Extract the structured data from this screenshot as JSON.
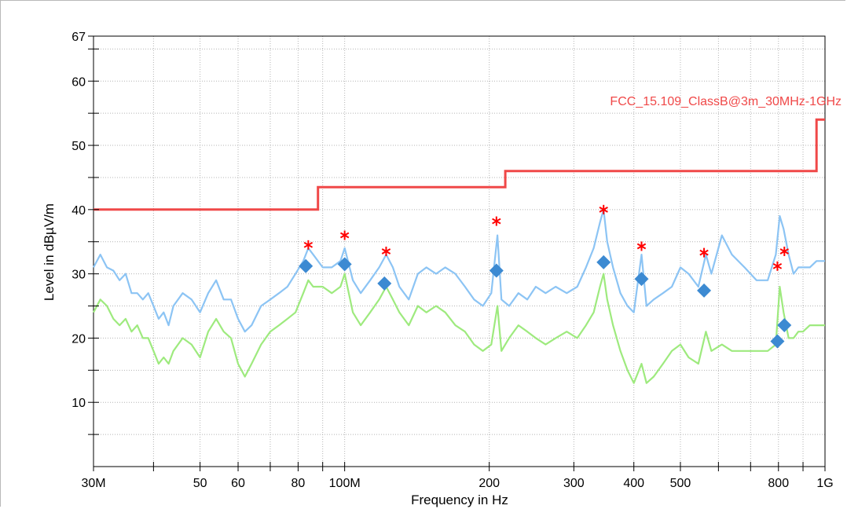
{
  "chart_data": {
    "type": "line",
    "title": "",
    "xlabel": "Frequency in Hz",
    "ylabel": "Level in dBµV/m",
    "xscale": "log",
    "xlim": [
      30000000,
      1000000000
    ],
    "ylim": [
      0,
      67
    ],
    "grid": true,
    "x_tick_labels": [
      {
        "value": 30000000,
        "label": "30M"
      },
      {
        "value": 50000000,
        "label": "50"
      },
      {
        "value": 60000000,
        "label": "60"
      },
      {
        "value": 80000000,
        "label": "80"
      },
      {
        "value": 100000000,
        "label": "100M"
      },
      {
        "value": 200000000,
        "label": "200"
      },
      {
        "value": 300000000,
        "label": "300"
      },
      {
        "value": 400000000,
        "label": "400"
      },
      {
        "value": 500000000,
        "label": "500"
      },
      {
        "value": 800000000,
        "label": "800"
      },
      {
        "value": 1000000000,
        "label": "1G"
      }
    ],
    "y_tick_labels": [
      {
        "value": 10,
        "label": "10"
      },
      {
        "value": 20,
        "label": "20"
      },
      {
        "value": 30,
        "label": "30"
      },
      {
        "value": 40,
        "label": "40"
      },
      {
        "value": 50,
        "label": "50"
      },
      {
        "value": 60,
        "label": "60"
      },
      {
        "value": 67,
        "label": "67"
      }
    ],
    "limit_line": {
      "name": "FCC_15.109_ClassB@3m_30MHz-1GHz",
      "color": "#f04848",
      "points": [
        [
          30000000,
          40.0
        ],
        [
          88000000,
          40.0
        ],
        [
          88000000,
          43.5
        ],
        [
          216000000,
          43.5
        ],
        [
          216000000,
          46.0
        ],
        [
          960000000,
          46.0
        ],
        [
          960000000,
          54.0
        ],
        [
          1000000000,
          54.0
        ]
      ]
    },
    "series": [
      {
        "color": "#8cc4f4",
        "points": [
          [
            30000000,
            31
          ],
          [
            31000000,
            33
          ],
          [
            32000000,
            31
          ],
          [
            33000000,
            30.5
          ],
          [
            34000000,
            29
          ],
          [
            35000000,
            30
          ],
          [
            36000000,
            27
          ],
          [
            37000000,
            27
          ],
          [
            38000000,
            26
          ],
          [
            39000000,
            27
          ],
          [
            40000000,
            25
          ],
          [
            41000000,
            23
          ],
          [
            42000000,
            24
          ],
          [
            43000000,
            22
          ],
          [
            44000000,
            25
          ],
          [
            46000000,
            27
          ],
          [
            48000000,
            26
          ],
          [
            50000000,
            24
          ],
          [
            52000000,
            27
          ],
          [
            54000000,
            29
          ],
          [
            56000000,
            26
          ],
          [
            58000000,
            26
          ],
          [
            60000000,
            23
          ],
          [
            62000000,
            21
          ],
          [
            64000000,
            22
          ],
          [
            67000000,
            25
          ],
          [
            70000000,
            26
          ],
          [
            73000000,
            27
          ],
          [
            76000000,
            28
          ],
          [
            79000000,
            30
          ],
          [
            82000000,
            32
          ],
          [
            84000000,
            34
          ],
          [
            86000000,
            33
          ],
          [
            90000000,
            31
          ],
          [
            94000000,
            31
          ],
          [
            98000000,
            32
          ],
          [
            100000000,
            34
          ],
          [
            104000000,
            29
          ],
          [
            108000000,
            27
          ],
          [
            113000000,
            29
          ],
          [
            118000000,
            31
          ],
          [
            122000000,
            33
          ],
          [
            126000000,
            31
          ],
          [
            130000000,
            28
          ],
          [
            136000000,
            26
          ],
          [
            142000000,
            30
          ],
          [
            148000000,
            31
          ],
          [
            155000000,
            30
          ],
          [
            162000000,
            31
          ],
          [
            170000000,
            30
          ],
          [
            178000000,
            28
          ],
          [
            186000000,
            26
          ],
          [
            194000000,
            25
          ],
          [
            202000000,
            27
          ],
          [
            208000000,
            36
          ],
          [
            212000000,
            26
          ],
          [
            220000000,
            25
          ],
          [
            230000000,
            27
          ],
          [
            240000000,
            26
          ],
          [
            250000000,
            28
          ],
          [
            262000000,
            27
          ],
          [
            275000000,
            28
          ],
          [
            290000000,
            27
          ],
          [
            305000000,
            28
          ],
          [
            318000000,
            31
          ],
          [
            330000000,
            34
          ],
          [
            340000000,
            38
          ],
          [
            346000000,
            40
          ],
          [
            352000000,
            35
          ],
          [
            362000000,
            31
          ],
          [
            375000000,
            27
          ],
          [
            388000000,
            25
          ],
          [
            400000000,
            24
          ],
          [
            415000000,
            33
          ],
          [
            425000000,
            25
          ],
          [
            440000000,
            26
          ],
          [
            460000000,
            27
          ],
          [
            480000000,
            28
          ],
          [
            500000000,
            31
          ],
          [
            520000000,
            30
          ],
          [
            545000000,
            28
          ],
          [
            565000000,
            33
          ],
          [
            580000000,
            30
          ],
          [
            610000000,
            36
          ],
          [
            640000000,
            33
          ],
          [
            680000000,
            31
          ],
          [
            720000000,
            29
          ],
          [
            760000000,
            29
          ],
          [
            790000000,
            33
          ],
          [
            805000000,
            39
          ],
          [
            820000000,
            37
          ],
          [
            840000000,
            33
          ],
          [
            860000000,
            30
          ],
          [
            880000000,
            31
          ],
          [
            900000000,
            31
          ],
          [
            930000000,
            31
          ],
          [
            960000000,
            32
          ],
          [
            1000000000,
            32
          ]
        ]
      },
      {
        "color": "#9eea7e",
        "points": [
          [
            30000000,
            24
          ],
          [
            31000000,
            26
          ],
          [
            32000000,
            25
          ],
          [
            33000000,
            23
          ],
          [
            34000000,
            22
          ],
          [
            35000000,
            23
          ],
          [
            36000000,
            21
          ],
          [
            37000000,
            22
          ],
          [
            38000000,
            20
          ],
          [
            39000000,
            20
          ],
          [
            40000000,
            18
          ],
          [
            41000000,
            16
          ],
          [
            42000000,
            17
          ],
          [
            43000000,
            16
          ],
          [
            44000000,
            18
          ],
          [
            46000000,
            20
          ],
          [
            48000000,
            19
          ],
          [
            50000000,
            17
          ],
          [
            52000000,
            21
          ],
          [
            54000000,
            23
          ],
          [
            56000000,
            21
          ],
          [
            58000000,
            20
          ],
          [
            60000000,
            16
          ],
          [
            62000000,
            14
          ],
          [
            64000000,
            16
          ],
          [
            67000000,
            19
          ],
          [
            70000000,
            21
          ],
          [
            73000000,
            22
          ],
          [
            76000000,
            23
          ],
          [
            79000000,
            24
          ],
          [
            82000000,
            27
          ],
          [
            84000000,
            29
          ],
          [
            86000000,
            28
          ],
          [
            90000000,
            28
          ],
          [
            94000000,
            27
          ],
          [
            98000000,
            28
          ],
          [
            100000000,
            30
          ],
          [
            104000000,
            24
          ],
          [
            108000000,
            22
          ],
          [
            113000000,
            24
          ],
          [
            118000000,
            26
          ],
          [
            122000000,
            28
          ],
          [
            126000000,
            26
          ],
          [
            130000000,
            24
          ],
          [
            136000000,
            22
          ],
          [
            142000000,
            25
          ],
          [
            148000000,
            24
          ],
          [
            155000000,
            25
          ],
          [
            162000000,
            24
          ],
          [
            170000000,
            22
          ],
          [
            178000000,
            21
          ],
          [
            186000000,
            19
          ],
          [
            194000000,
            18
          ],
          [
            202000000,
            19
          ],
          [
            208000000,
            25
          ],
          [
            212000000,
            18
          ],
          [
            220000000,
            20
          ],
          [
            230000000,
            22
          ],
          [
            240000000,
            21
          ],
          [
            250000000,
            20
          ],
          [
            262000000,
            19
          ],
          [
            275000000,
            20
          ],
          [
            290000000,
            21
          ],
          [
            305000000,
            20
          ],
          [
            318000000,
            22
          ],
          [
            330000000,
            24
          ],
          [
            340000000,
            28
          ],
          [
            346000000,
            30
          ],
          [
            352000000,
            26
          ],
          [
            362000000,
            22
          ],
          [
            375000000,
            18
          ],
          [
            388000000,
            15
          ],
          [
            400000000,
            13
          ],
          [
            415000000,
            16
          ],
          [
            425000000,
            13
          ],
          [
            440000000,
            14
          ],
          [
            460000000,
            16
          ],
          [
            480000000,
            18
          ],
          [
            500000000,
            19
          ],
          [
            520000000,
            17
          ],
          [
            545000000,
            16
          ],
          [
            565000000,
            21
          ],
          [
            580000000,
            18
          ],
          [
            610000000,
            19
          ],
          [
            640000000,
            18
          ],
          [
            680000000,
            18
          ],
          [
            720000000,
            18
          ],
          [
            760000000,
            18
          ],
          [
            790000000,
            19
          ],
          [
            805000000,
            28
          ],
          [
            820000000,
            24
          ],
          [
            840000000,
            20
          ],
          [
            860000000,
            20
          ],
          [
            880000000,
            21
          ],
          [
            900000000,
            21
          ],
          [
            930000000,
            22
          ],
          [
            960000000,
            22
          ],
          [
            1000000000,
            22
          ]
        ]
      }
    ],
    "peak_markers": {
      "color": "#ff0000",
      "symbol": "asterisk",
      "points": [
        [
          84000000,
          34.5
        ],
        [
          100000000,
          36.0
        ],
        [
          122000000,
          33.5
        ],
        [
          207000000,
          38.2
        ],
        [
          346000000,
          40.0
        ],
        [
          415000000,
          34.3
        ],
        [
          560000000,
          33.3
        ],
        [
          796000000,
          31.2
        ],
        [
          823000000,
          33.5
        ]
      ]
    },
    "final_markers": {
      "color": "#3c8ad2",
      "symbol": "diamond",
      "points": [
        [
          83000000,
          31.2
        ],
        [
          100000000,
          31.5
        ],
        [
          121000000,
          28.5
        ],
        [
          207000000,
          30.5
        ],
        [
          346000000,
          31.8
        ],
        [
          415000000,
          29.2
        ],
        [
          560000000,
          27.4
        ],
        [
          796000000,
          19.5
        ],
        [
          823000000,
          22.0
        ]
      ]
    }
  }
}
